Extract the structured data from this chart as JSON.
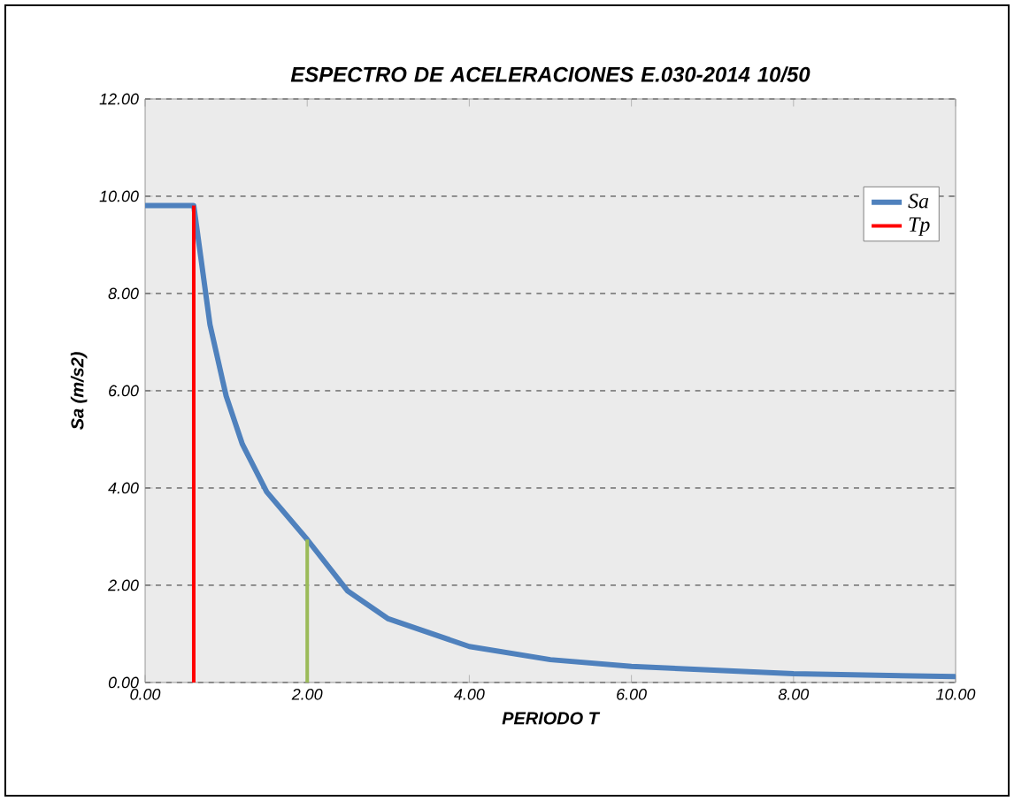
{
  "chart_data": {
    "type": "line",
    "title": "ESPECTRO DE ACELERACIONES E.030-2014 10/50",
    "xlabel": "PERIODO T",
    "ylabel": "Sa (m/s2)",
    "series": [
      {
        "name": "Sa",
        "color": "#4f81bd",
        "x": [
          0,
          0.6,
          0.8,
          1.0,
          1.2,
          1.5,
          2.0,
          2.5,
          3.0,
          4.0,
          5.0,
          6.0,
          8.0,
          10.0
        ],
        "values": [
          9.81,
          9.81,
          7.36,
          5.89,
          4.9,
          3.92,
          2.94,
          1.88,
          1.31,
          0.74,
          0.47,
          0.33,
          0.18,
          0.12
        ]
      },
      {
        "name": "Tp",
        "color": "#ff0000",
        "x": [
          0.6,
          0.6
        ],
        "values": [
          0,
          9.81
        ]
      },
      {
        "color": "#9bbb59",
        "x": [
          2.0,
          2.0
        ],
        "values": [
          0,
          2.94
        ]
      }
    ],
    "xlim": [
      0,
      10
    ],
    "ylim": [
      0,
      12
    ],
    "xticks": [
      {
        "value": 0,
        "label": "0.00"
      },
      {
        "value": 2,
        "label": "2.00"
      },
      {
        "value": 4,
        "label": "4.00"
      },
      {
        "value": 6,
        "label": "6.00"
      },
      {
        "value": 8,
        "label": "8.00"
      },
      {
        "value": 10,
        "label": "10.00"
      }
    ],
    "yticks": [
      {
        "value": 0,
        "label": "0.00"
      },
      {
        "value": 2,
        "label": "2.00"
      },
      {
        "value": 4,
        "label": "4.00"
      },
      {
        "value": 6,
        "label": "6.00"
      },
      {
        "value": 8,
        "label": "8.00"
      },
      {
        "value": 10,
        "label": "10.00"
      },
      {
        "value": 12,
        "label": "12.00"
      }
    ],
    "grid": "y",
    "legend": "right",
    "marker": "none",
    "line_style": "solid"
  }
}
